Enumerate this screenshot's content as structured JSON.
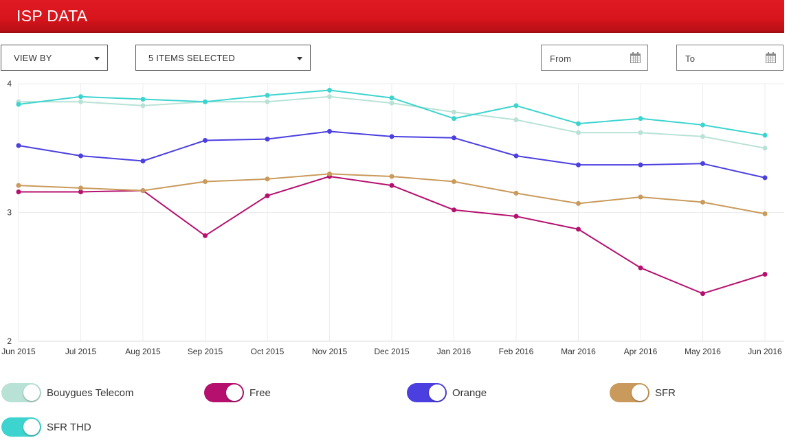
{
  "header": {
    "title": "ISP DATA"
  },
  "controls": {
    "view_by": "VIEW BY",
    "items_selected": "5 ITEMS SELECTED",
    "from_placeholder": "From",
    "to_placeholder": "To"
  },
  "icons": {
    "dropdown": "chevron-down-icon",
    "calendar": "calendar-icon"
  },
  "chart_data": {
    "type": "line",
    "title": "",
    "xlabel": "",
    "ylabel": "",
    "ylim": [
      2,
      4
    ],
    "yticks": [
      "4",
      "3",
      "2"
    ],
    "categories": [
      "Jun 2015",
      "Jul 2015",
      "Aug 2015",
      "Sep 2015",
      "Oct 2015",
      "Nov 2015",
      "Dec 2015",
      "Jan 2016",
      "Feb 2016",
      "Mar 2016",
      "Apr 2016",
      "May 2016",
      "Jun 2016"
    ],
    "grid": true,
    "series": [
      {
        "name": "Bouygues Telecom",
        "color": "#b8e2d6",
        "values": [
          3.86,
          3.86,
          3.83,
          3.86,
          3.86,
          3.9,
          3.85,
          3.78,
          3.72,
          3.62,
          3.62,
          3.59,
          3.5
        ]
      },
      {
        "name": "Free",
        "color": "#b5106e",
        "values": [
          3.16,
          3.16,
          3.17,
          2.82,
          3.13,
          3.28,
          3.21,
          3.02,
          2.97,
          2.87,
          2.57,
          2.37,
          2.52
        ]
      },
      {
        "name": "Orange",
        "color": "#4b3fe0",
        "values": [
          3.52,
          3.44,
          3.4,
          3.56,
          3.57,
          3.63,
          3.59,
          3.58,
          3.44,
          3.37,
          3.37,
          3.38,
          3.27
        ]
      },
      {
        "name": "SFR",
        "color": "#c99a5b",
        "values": [
          3.21,
          3.19,
          3.17,
          3.24,
          3.26,
          3.3,
          3.28,
          3.24,
          3.15,
          3.07,
          3.12,
          3.08,
          2.99
        ]
      },
      {
        "name": "SFR THD",
        "color": "#3dd4cf",
        "values": [
          3.84,
          3.9,
          3.88,
          3.86,
          3.91,
          3.95,
          3.89,
          3.73,
          3.83,
          3.69,
          3.73,
          3.68,
          3.6
        ]
      }
    ]
  },
  "legend": [
    {
      "label": "Bouygues Telecom",
      "color": "#b8e2d6"
    },
    {
      "label": "Free",
      "color": "#b5106e"
    },
    {
      "label": "Orange",
      "color": "#4b3fe0"
    },
    {
      "label": "SFR",
      "color": "#c99a5b"
    },
    {
      "label": "SFR THD",
      "color": "#3dd4cf"
    }
  ]
}
